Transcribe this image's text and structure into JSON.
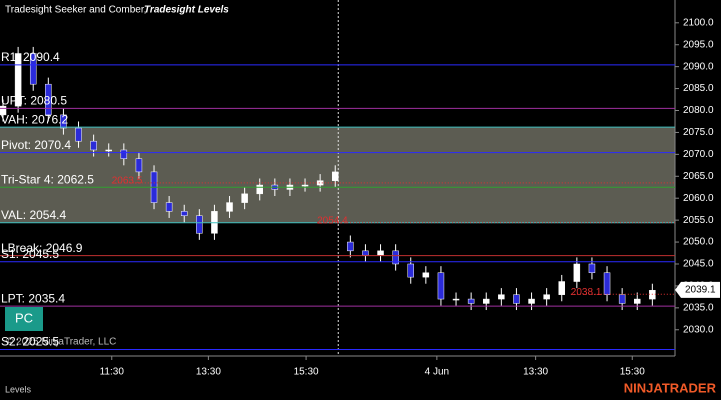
{
  "chart_data": {
    "type": "candlestick",
    "title": "Tradesight Seeker and Comber,",
    "subtitle": "Tradesight Levels",
    "copyright": "© 2025 NinjaTrader, LLC",
    "tab": "Levels",
    "brand": "NINJATRADER",
    "button": "PC",
    "up_color": "#ffffff",
    "down_color": "#2b2bd9",
    "open": [
      2079,
      2081,
      2093,
      2086,
      2079,
      2076,
      2073,
      2071,
      2071,
      2069,
      2066,
      2059,
      2057,
      2056,
      2052,
      2057,
      2059,
      2061,
      2063,
      2062,
      2063,
      2063,
      2064,
      2050,
      2048,
      2047,
      2048,
      2045,
      2042,
      2043,
      2037,
      2037,
      2036,
      2037,
      2038,
      2036,
      2037,
      2038,
      2041,
      2045,
      2043,
      2038,
      2036,
      2037
    ],
    "high": [
      2082.5,
      2094.5,
      2094.5,
      2087.5,
      2080.5,
      2077.5,
      2074.5,
      2072.5,
      2072.5,
      2070.5,
      2067.5,
      2060.5,
      2058.5,
      2057.5,
      2058.5,
      2060.5,
      2062.5,
      2064.5,
      2064.5,
      2064.5,
      2064.5,
      2065.5,
      2067.5,
      2051.5,
      2049.5,
      2049.5,
      2049.5,
      2046.5,
      2044.5,
      2044.5,
      2038.5,
      2038.5,
      2038.5,
      2039.5,
      2039.5,
      2038.5,
      2039.5,
      2042.5,
      2046.5,
      2046.5,
      2044.5,
      2039.5,
      2038.5,
      2040.5
    ],
    "low": [
      2077.5,
      2079.5,
      2084.5,
      2077.5,
      2074.5,
      2071.5,
      2069.5,
      2069.5,
      2067.5,
      2064.5,
      2057.5,
      2055.5,
      2054.5,
      2050.5,
      2050.5,
      2055.5,
      2057.5,
      2059.5,
      2060.5,
      2060.5,
      2061.5,
      2061.5,
      2062.5,
      2046.5,
      2045.5,
      2045.5,
      2043.5,
      2040.5,
      2040.5,
      2035.5,
      2035.5,
      2034.5,
      2034.5,
      2035.5,
      2034.5,
      2034.5,
      2035.5,
      2036.5,
      2039.5,
      2041.5,
      2036.5,
      2034.5,
      2034.5,
      2035.5
    ],
    "close": [
      2081,
      2093,
      2086,
      2079,
      2076,
      2073,
      2071,
      2071,
      2069,
      2066,
      2059,
      2057,
      2056,
      2052,
      2057,
      2059,
      2061,
      2063,
      2062,
      2063,
      2063,
      2064,
      2066,
      2048,
      2047,
      2048,
      2045,
      2042,
      2043,
      2037,
      2037,
      2036,
      2037,
      2038,
      2036,
      2037,
      2038,
      2041,
      2045,
      2043,
      2038,
      2036,
      2037,
      2039
    ],
    "xlim": [
      -0.2,
      44.5
    ],
    "xticks": [
      {
        "value": 7.2,
        "label": "11:30"
      },
      {
        "value": 13.6,
        "label": "13:30"
      },
      {
        "value": 20.07,
        "label": "15:30"
      },
      {
        "value": 28.73,
        "label": "4 Jun"
      },
      {
        "value": 35.27,
        "label": "13:30"
      },
      {
        "value": 41.67,
        "label": "15:30"
      }
    ],
    "session_break": 22.2,
    "ylim": [
      2019,
      2105.2
    ],
    "yticks": [
      {
        "value": 2030,
        "label": "2030.0"
      },
      {
        "value": 2035,
        "label": "2035.0"
      },
      {
        "value": 2040,
        "label": "2040.0"
      },
      {
        "value": 2045,
        "label": "2045.0"
      },
      {
        "value": 2050,
        "label": "2050.0"
      },
      {
        "value": 2055,
        "label": "2055.0"
      },
      {
        "value": 2060,
        "label": "2060.0"
      },
      {
        "value": 2065,
        "label": "2065.0"
      },
      {
        "value": 2070,
        "label": "2070.0"
      },
      {
        "value": 2075,
        "label": "2075.0"
      },
      {
        "value": 2080,
        "label": "2080.0"
      },
      {
        "value": 2085,
        "label": "2085.0"
      },
      {
        "value": 2090,
        "label": "2090.0"
      },
      {
        "value": 2095,
        "label": "2095.0"
      },
      {
        "value": 2100,
        "label": "2100.0"
      }
    ],
    "levels": [
      {
        "value": 2090.4,
        "label": "R1: 2090.4",
        "color": "#2a2aff"
      },
      {
        "value": 2080.5,
        "label": "UPT: 2080.5",
        "color": "#a030a0"
      },
      {
        "value": 2076.2,
        "label": "VAH: 2076.2",
        "color": "#40c0c0"
      },
      {
        "value": 2070.4,
        "label": "Pivot: 2070.4",
        "color": "#2a2aff"
      },
      {
        "value": 2062.5,
        "label": "Tri-Star 4: 2062.5",
        "color": "#30a030"
      },
      {
        "value": 2054.4,
        "label": "VAL: 2054.4",
        "color": "#40c0c0"
      },
      {
        "value": 2046.9,
        "label": "LBreak: 2046.9",
        "color": "#c03030"
      },
      {
        "value": 2045.5,
        "label": "S1: 2045.5",
        "color": "#2a2aff"
      },
      {
        "value": 2035.4,
        "label": "LPT: 2035.4",
        "color": "#a030a0"
      },
      {
        "value": 2025.5,
        "label": "S2: 2025.5",
        "color": "#2a2aff"
      }
    ],
    "value_area_fill": "#5c5c52",
    "markers": [
      {
        "value": 2063.5,
        "label": "2063.5",
        "start": 7.2
      },
      {
        "value": 2054.4,
        "label": "2054.4",
        "start": 20.8
      },
      {
        "value": 2038.1,
        "label": "2038.1",
        "start": 37.6
      }
    ],
    "last_price": {
      "value": 2039.1,
      "label": "2039.1"
    }
  }
}
